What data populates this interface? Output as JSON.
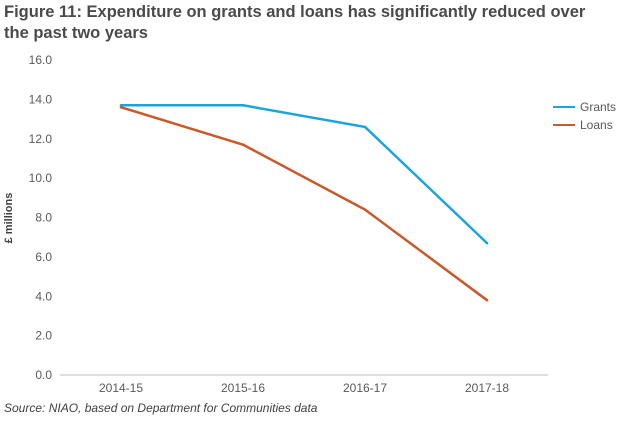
{
  "title": "Figure 11: Expenditure on grants and loans has significantly reduced over the past two years",
  "source": "Source: NIAO, based on Department for Communities data",
  "chart_data": {
    "type": "line",
    "categories": [
      "2014-15",
      "2015-16",
      "2016-17",
      "2017-18"
    ],
    "series": [
      {
        "name": "Grants",
        "color": "#1ba3dc",
        "values": [
          13.7,
          13.7,
          12.6,
          6.7
        ]
      },
      {
        "name": "Loans",
        "color": "#c8592a",
        "values": [
          13.6,
          11.7,
          8.4,
          3.8
        ]
      }
    ],
    "ylabel": "£ millions",
    "xlabel": "",
    "ylim": [
      0,
      16
    ],
    "yticks": [
      "0.0",
      "2.0",
      "4.0",
      "6.0",
      "8.0",
      "10.0",
      "12.0",
      "14.0",
      "16.0"
    ],
    "grid": false,
    "legend": "right"
  }
}
